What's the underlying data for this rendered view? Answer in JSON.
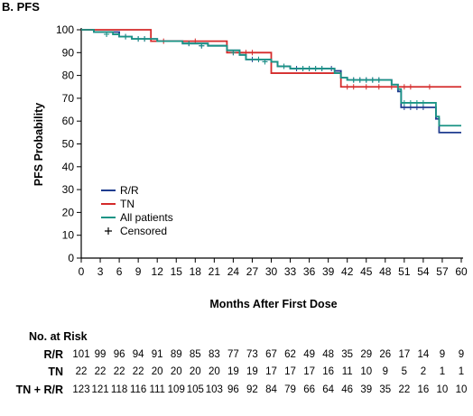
{
  "panel_label": "B. PFS",
  "chart_data": {
    "type": "line",
    "subtype": "kaplan-meier",
    "xlabel": "Months After First Dose",
    "ylabel": "PFS Probability",
    "xlim": [
      0,
      60
    ],
    "ylim": [
      0,
      100
    ],
    "x_ticks": [
      0,
      3,
      6,
      9,
      12,
      15,
      18,
      21,
      24,
      27,
      30,
      33,
      36,
      39,
      42,
      45,
      48,
      51,
      54,
      57,
      60
    ],
    "y_ticks": [
      0,
      10,
      20,
      30,
      40,
      50,
      60,
      70,
      80,
      90,
      100
    ],
    "grid": false,
    "legend_position": "lower-left",
    "series": [
      {
        "name": "R/R",
        "color": "#1f3c8f",
        "steps": [
          [
            0,
            100
          ],
          [
            2,
            99
          ],
          [
            6,
            97
          ],
          [
            8,
            96
          ],
          [
            12,
            95
          ],
          [
            16,
            94
          ],
          [
            20,
            93
          ],
          [
            23,
            91
          ],
          [
            25,
            89
          ],
          [
            26,
            87
          ],
          [
            30,
            86
          ],
          [
            31,
            84
          ],
          [
            33,
            83
          ],
          [
            39,
            83
          ],
          [
            40,
            82
          ],
          [
            41,
            79
          ],
          [
            42,
            78
          ],
          [
            48,
            78
          ],
          [
            49,
            76
          ],
          [
            50,
            73
          ],
          [
            50.5,
            66
          ],
          [
            55,
            66
          ],
          [
            56,
            61
          ],
          [
            56.5,
            55
          ],
          [
            60,
            55
          ]
        ],
        "censored": [
          [
            4,
            98
          ],
          [
            7,
            97
          ],
          [
            9,
            96
          ],
          [
            10,
            96
          ],
          [
            11,
            96
          ],
          [
            17,
            94
          ],
          [
            19,
            93
          ],
          [
            24,
            90
          ],
          [
            27,
            87
          ],
          [
            28,
            87
          ],
          [
            29,
            86
          ],
          [
            32,
            84
          ],
          [
            34,
            83
          ],
          [
            35,
            83
          ],
          [
            36,
            83
          ],
          [
            37,
            83
          ],
          [
            38,
            83
          ],
          [
            39.5,
            83
          ],
          [
            43,
            78
          ],
          [
            44,
            78
          ],
          [
            45,
            78
          ],
          [
            46,
            78
          ],
          [
            47,
            78
          ],
          [
            51,
            66
          ],
          [
            52,
            66
          ],
          [
            53,
            66
          ],
          [
            54,
            66
          ]
        ]
      },
      {
        "name": "TN",
        "color": "#d42a2a",
        "steps": [
          [
            0,
            100
          ],
          [
            11,
            95
          ],
          [
            23,
            90
          ],
          [
            30,
            81
          ],
          [
            41,
            75
          ],
          [
            60,
            75
          ]
        ],
        "censored": [
          [
            13,
            95
          ],
          [
            18,
            95
          ],
          [
            25,
            90
          ],
          [
            26,
            90
          ],
          [
            27,
            90
          ],
          [
            42,
            75
          ],
          [
            43,
            75
          ],
          [
            45,
            75
          ],
          [
            47,
            75
          ],
          [
            49,
            75
          ],
          [
            50,
            75
          ],
          [
            51,
            75
          ],
          [
            52,
            75
          ],
          [
            55,
            75
          ]
        ]
      },
      {
        "name": "All patients",
        "color": "#1a9485",
        "steps": [
          [
            0,
            100
          ],
          [
            2,
            99
          ],
          [
            5,
            98
          ],
          [
            6,
            97
          ],
          [
            8,
            96
          ],
          [
            11,
            96
          ],
          [
            12,
            95
          ],
          [
            16,
            94
          ],
          [
            20,
            93
          ],
          [
            23,
            91
          ],
          [
            25,
            89
          ],
          [
            26,
            87
          ],
          [
            30,
            86
          ],
          [
            31,
            84
          ],
          [
            33,
            83
          ],
          [
            39,
            83
          ],
          [
            40,
            81
          ],
          [
            41,
            79
          ],
          [
            42,
            78
          ],
          [
            48,
            78
          ],
          [
            49,
            76
          ],
          [
            50,
            74
          ],
          [
            50.5,
            68
          ],
          [
            55,
            68
          ],
          [
            56,
            62
          ],
          [
            56.5,
            58
          ],
          [
            60,
            58
          ]
        ],
        "censored": [
          [
            4,
            98
          ],
          [
            7,
            97
          ],
          [
            9,
            96
          ],
          [
            10,
            96
          ],
          [
            17,
            94
          ],
          [
            19,
            93
          ],
          [
            24,
            90
          ],
          [
            28,
            87
          ],
          [
            29,
            86
          ],
          [
            32,
            84
          ],
          [
            35,
            83
          ],
          [
            36,
            83
          ],
          [
            37,
            83
          ],
          [
            38,
            83
          ],
          [
            43,
            78
          ],
          [
            44,
            78
          ],
          [
            45,
            78
          ],
          [
            46,
            78
          ],
          [
            47,
            78
          ],
          [
            51,
            68
          ],
          [
            52,
            68
          ],
          [
            53,
            68
          ],
          [
            54,
            68
          ]
        ]
      }
    ],
    "legend": [
      {
        "label": "R/R",
        "color": "#1f3c8f",
        "symbol": "line"
      },
      {
        "label": "TN",
        "color": "#d42a2a",
        "symbol": "line"
      },
      {
        "label": "All patients",
        "color": "#1a9485",
        "symbol": "line"
      },
      {
        "label": "Censored",
        "color": "#000000",
        "symbol": "+"
      }
    ]
  },
  "risk_table": {
    "title": "No. at Risk",
    "times": [
      0,
      3,
      6,
      9,
      12,
      15,
      18,
      21,
      24,
      27,
      30,
      33,
      36,
      39,
      42,
      45,
      48,
      51,
      54,
      57,
      60
    ],
    "rows": [
      {
        "label": "R/R",
        "values": [
          101,
          99,
          96,
          94,
          91,
          89,
          85,
          83,
          77,
          73,
          67,
          62,
          49,
          48,
          35,
          29,
          26,
          17,
          14,
          9,
          9
        ]
      },
      {
        "label": "TN",
        "values": [
          22,
          22,
          22,
          22,
          20,
          20,
          20,
          20,
          19,
          19,
          17,
          17,
          17,
          16,
          11,
          10,
          9,
          5,
          2,
          1,
          1
        ]
      },
      {
        "label": "TN + R/R",
        "values": [
          123,
          121,
          118,
          116,
          111,
          109,
          105,
          103,
          96,
          92,
          84,
          79,
          66,
          64,
          46,
          39,
          35,
          22,
          16,
          10,
          10
        ]
      }
    ]
  }
}
